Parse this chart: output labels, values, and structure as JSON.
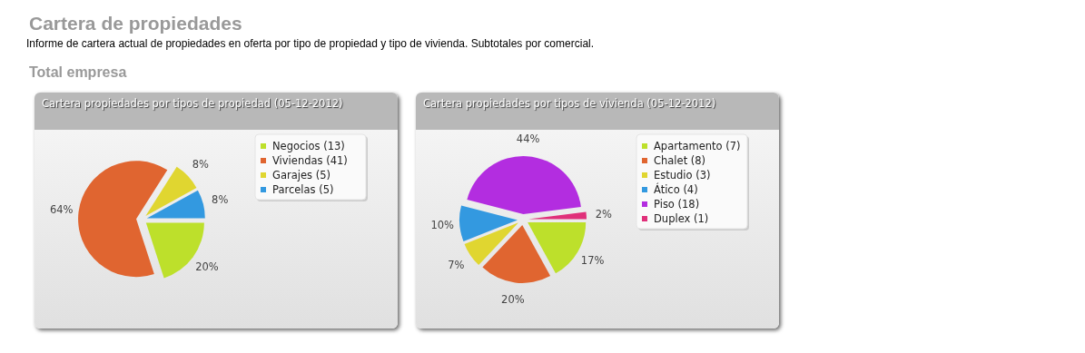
{
  "chart_data": [
    {
      "type": "pie",
      "title": "Cartera propiedades por tipos de propiedad (05-12-2012)",
      "annotations": [
        "Cartera de propiedades",
        "Informe de cartera actual de propiedades en oferta por tipo de propiedad y tipo de vivienda. Subtotales por comercial.",
        "Total empresa"
      ],
      "categories": [
        "Negocios (13)",
        "Viviendas (41)",
        "Garajes (5)",
        "Parcelas (5)"
      ],
      "values": [
        20,
        64,
        8,
        8
      ],
      "value_labels": [
        "20%",
        "64%",
        "8%",
        "8%"
      ],
      "colors": [
        "#bde02b",
        "#e06530",
        "#e0d630",
        "#3399e0"
      ],
      "legend": "top right"
    },
    {
      "type": "pie",
      "title": "Cartera propiedades por tipos de vivienda (05-12-2012)",
      "categories": [
        "Apartamento (7)",
        "Chalet (8)",
        "Estudio (3)",
        "Ático (4)",
        "Piso (18)",
        "Duplex (1)"
      ],
      "values": [
        17,
        20,
        7,
        10,
        44,
        2
      ],
      "value_labels": [
        "17%",
        "20%",
        "7%",
        "10%",
        "44%",
        "2%"
      ],
      "colors": [
        "#bde02b",
        "#e06530",
        "#e0d630",
        "#3399e0",
        "#b32de0",
        "#e0307a"
      ],
      "legend": "top right"
    }
  ]
}
